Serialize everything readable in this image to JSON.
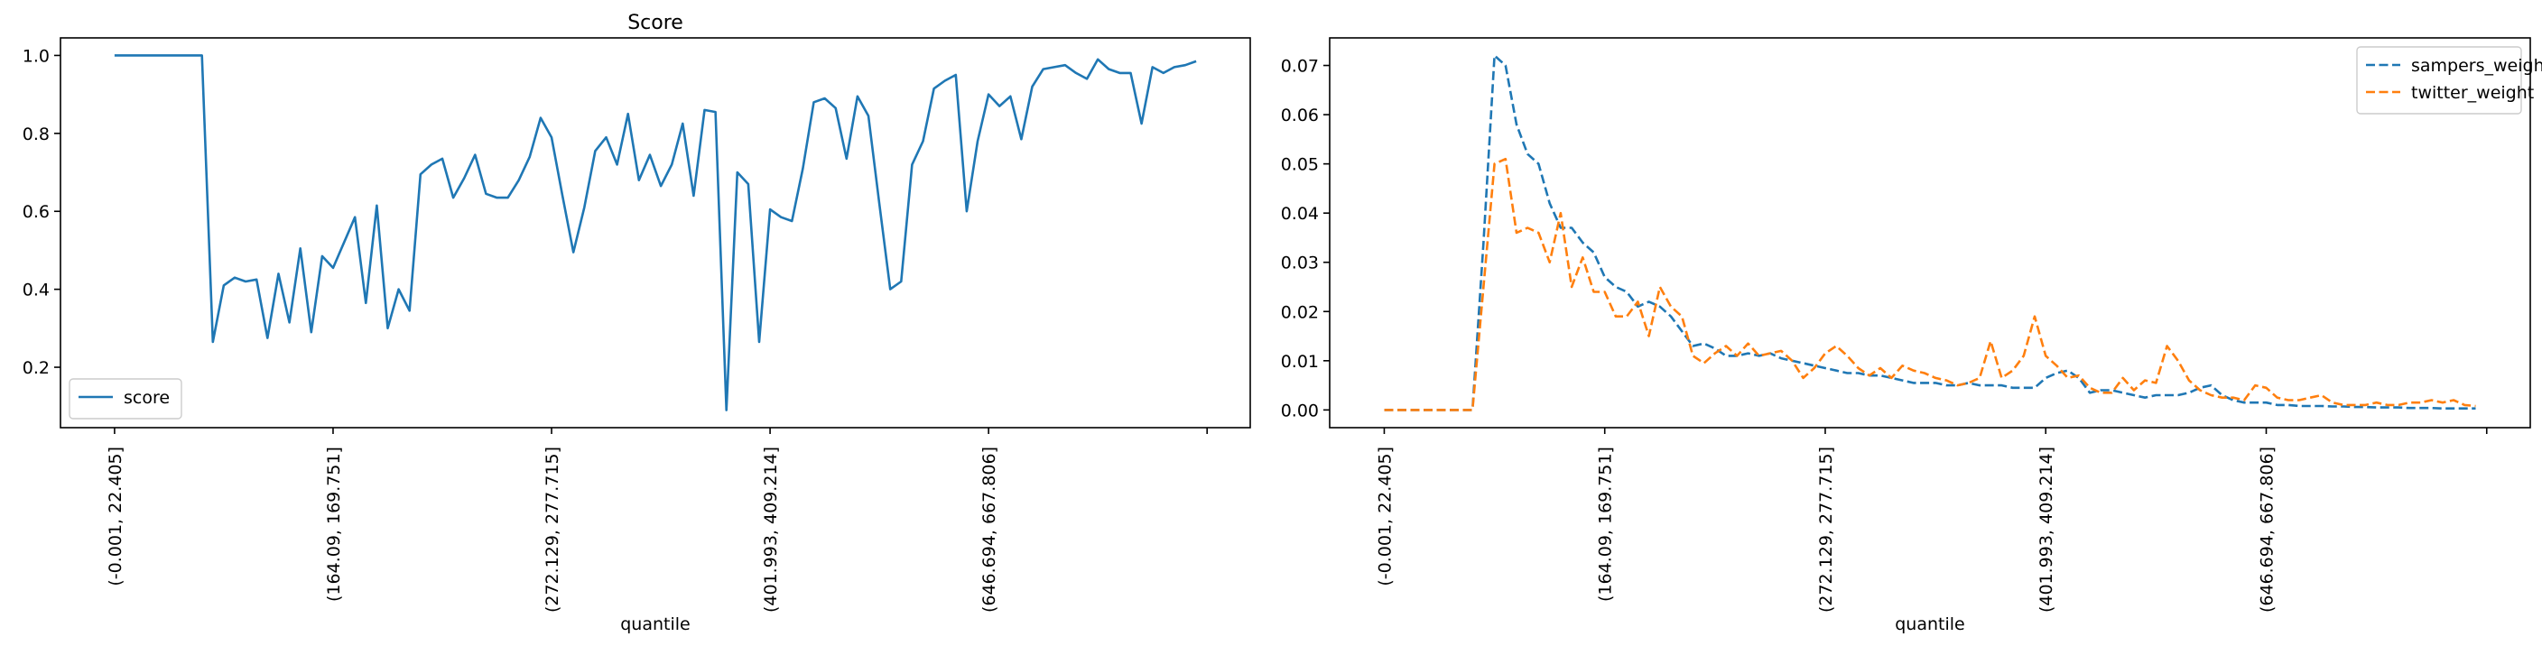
{
  "colors": {
    "score": "#1f77b4",
    "sampers_weight": "#1f77b4",
    "twitter_weight": "#ff7f0e",
    "axes": "#000000"
  },
  "chart_data": [
    {
      "type": "line",
      "title": "Score",
      "xlabel": "quantile",
      "ylabel": "",
      "x_tick_labels": [
        "(-0.001, 22.405]",
        "(164.09, 169.751]",
        "(272.129, 277.715]",
        "(401.993, 409.214]",
        "(646.694, 667.806]",
        ""
      ],
      "x_tick_positions": [
        0,
        20,
        40,
        60,
        80,
        100
      ],
      "xlim": [
        -4.95,
        103.95
      ],
      "ylim": [
        0.045,
        1.045
      ],
      "y_ticks": [
        0.2,
        0.4,
        0.6,
        0.8,
        1.0
      ],
      "y_tick_labels": [
        "0.2",
        "0.4",
        "0.6",
        "0.8",
        "1.0"
      ],
      "grid": false,
      "legend": {
        "position": "lower-left"
      },
      "series": [
        {
          "name": "score",
          "style": "solid",
          "values": [
            1.0,
            1.0,
            1.0,
            1.0,
            1.0,
            1.0,
            1.0,
            1.0,
            1.0,
            0.265,
            0.41,
            0.43,
            0.42,
            0.425,
            0.275,
            0.44,
            0.315,
            0.505,
            0.29,
            0.485,
            0.455,
            0.52,
            0.585,
            0.365,
            0.615,
            0.3,
            0.4,
            0.345,
            0.695,
            0.72,
            0.735,
            0.635,
            0.685,
            0.745,
            0.645,
            0.635,
            0.635,
            0.68,
            0.74,
            0.84,
            0.79,
            0.64,
            0.495,
            0.61,
            0.755,
            0.79,
            0.72,
            0.85,
            0.68,
            0.745,
            0.665,
            0.72,
            0.825,
            0.64,
            0.86,
            0.855,
            0.09,
            0.7,
            0.67,
            0.265,
            0.605,
            0.585,
            0.575,
            0.71,
            0.88,
            0.89,
            0.865,
            0.735,
            0.895,
            0.845,
            0.62,
            0.4,
            0.42,
            0.72,
            0.78,
            0.915,
            0.935,
            0.95,
            0.6,
            0.78,
            0.9,
            0.87,
            0.895,
            0.785,
            0.92,
            0.965,
            0.97,
            0.975,
            0.955,
            0.94,
            0.99,
            0.965,
            0.955,
            0.955,
            0.825,
            0.97,
            0.955,
            0.97,
            0.975,
            0.985
          ]
        }
      ]
    },
    {
      "type": "line",
      "title": "",
      "xlabel": "quantile",
      "ylabel": "",
      "x_tick_labels": [
        "(-0.001, 22.405]",
        "(164.09, 169.751]",
        "(272.129, 277.715]",
        "(401.993, 409.214]",
        "(646.694, 667.806]",
        ""
      ],
      "x_tick_positions": [
        0,
        20,
        40,
        60,
        80,
        100
      ],
      "xlim": [
        -4.95,
        103.95
      ],
      "ylim": [
        -0.0036,
        0.0756
      ],
      "y_ticks": [
        0.0,
        0.01,
        0.02,
        0.03,
        0.04,
        0.05,
        0.06,
        0.07
      ],
      "y_tick_labels": [
        "0.00",
        "0.01",
        "0.02",
        "0.03",
        "0.04",
        "0.05",
        "0.06",
        "0.07"
      ],
      "grid": false,
      "legend": {
        "position": "top-right"
      },
      "series": [
        {
          "name": "sampers_weight",
          "style": "dashed",
          "values": [
            0,
            0,
            0,
            0,
            0,
            0,
            0,
            0,
            0,
            0.034,
            0.072,
            0.07,
            0.058,
            0.052,
            0.05,
            0.042,
            0.037,
            0.037,
            0.034,
            0.032,
            0.027,
            0.025,
            0.024,
            0.021,
            0.022,
            0.021,
            0.019,
            0.016,
            0.013,
            0.0135,
            0.0125,
            0.011,
            0.011,
            0.0115,
            0.011,
            0.0115,
            0.0105,
            0.01,
            0.0095,
            0.009,
            0.0085,
            0.008,
            0.0075,
            0.0075,
            0.007,
            0.007,
            0.0065,
            0.006,
            0.0055,
            0.0055,
            0.0055,
            0.005,
            0.005,
            0.0055,
            0.005,
            0.005,
            0.005,
            0.0045,
            0.0045,
            0.0045,
            0.0065,
            0.0075,
            0.008,
            0.0065,
            0.0035,
            0.004,
            0.004,
            0.0035,
            0.003,
            0.0025,
            0.003,
            0.003,
            0.003,
            0.0035,
            0.0045,
            0.005,
            0.003,
            0.002,
            0.0015,
            0.0015,
            0.0015,
            0.001,
            0.001,
            0.0008,
            0.0008,
            0.0008,
            0.0007,
            0.0007,
            0.0006,
            0.0006,
            0.0005,
            0.0005,
            0.0005,
            0.0004,
            0.0004,
            0.0004,
            0.0003,
            0.0003,
            0.0003,
            0.0003
          ]
        },
        {
          "name": "twitter_weight",
          "style": "dashed",
          "values": [
            0,
            0,
            0,
            0,
            0,
            0,
            0,
            0,
            0,
            0.025,
            0.05,
            0.051,
            0.036,
            0.037,
            0.036,
            0.03,
            0.04,
            0.025,
            0.031,
            0.024,
            0.024,
            0.019,
            0.019,
            0.022,
            0.015,
            0.025,
            0.021,
            0.019,
            0.011,
            0.0095,
            0.0115,
            0.013,
            0.011,
            0.0135,
            0.011,
            0.0115,
            0.012,
            0.01,
            0.0065,
            0.0085,
            0.0115,
            0.013,
            0.011,
            0.0085,
            0.007,
            0.0085,
            0.0065,
            0.009,
            0.008,
            0.0075,
            0.0065,
            0.006,
            0.005,
            0.0055,
            0.0065,
            0.014,
            0.0065,
            0.008,
            0.011,
            0.019,
            0.011,
            0.009,
            0.0065,
            0.007,
            0.0045,
            0.0035,
            0.0035,
            0.0065,
            0.004,
            0.006,
            0.0055,
            0.013,
            0.01,
            0.006,
            0.004,
            0.003,
            0.0025,
            0.0025,
            0.002,
            0.005,
            0.0045,
            0.0025,
            0.002,
            0.002,
            0.0025,
            0.003,
            0.0015,
            0.001,
            0.001,
            0.001,
            0.0015,
            0.001,
            0.001,
            0.0015,
            0.0015,
            0.002,
            0.0015,
            0.002,
            0.001,
            0.0008
          ]
        }
      ]
    }
  ]
}
